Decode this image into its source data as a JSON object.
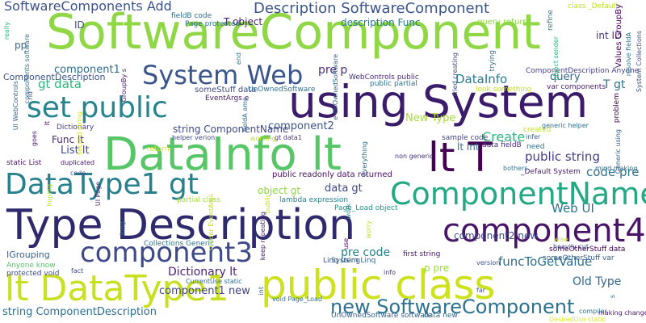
{
  "words": [
    {
      "text": "SoftwareComponent",
      "color": "#8fd744"
    },
    {
      "text": "using System",
      "color": "#3b1c6b"
    },
    {
      "text": "DataInfo lt",
      "color": "#56c667"
    },
    {
      "text": "Type Description",
      "color": "#2f2a6e"
    },
    {
      "text": "lt DataType1",
      "color": "#c8e020"
    },
    {
      "text": "public class",
      "color": "#cde11d"
    },
    {
      "text": "component4",
      "color": "#481467"
    },
    {
      "text": "ComponentName",
      "color": "#23a983"
    },
    {
      "text": "DataType1 gt",
      "color": "#27808e"
    },
    {
      "text": "set public",
      "color": "#25858e"
    },
    {
      "text": "lt T",
      "color": "#440154"
    },
    {
      "text": "component3",
      "color": "#3e4989"
    },
    {
      "text": "System Web",
      "color": "#39558c"
    },
    {
      "text": "new SoftwareComponent",
      "color": "#2c718e"
    },
    {
      "text": "SoftwareComponents Add",
      "color": "#3b528b"
    },
    {
      "text": "Description SoftwareComponent",
      "color": "#3a548c"
    },
    {
      "text": "funcToGetValue",
      "color": "#2d708e"
    },
    {
      "text": "Dictionary lt",
      "color": "#482173"
    },
    {
      "text": "component1 new",
      "color": "#404387"
    },
    {
      "text": "string ComponentDescription",
      "color": "#2e6f8e"
    },
    {
      "text": "pre code",
      "color": "#26818e"
    },
    {
      "text": "DataInfo",
      "color": "#2a788e"
    },
    {
      "text": "Web UI",
      "color": "#2c738e"
    },
    {
      "text": "Old Type",
      "color": "#30698e"
    },
    {
      "text": "public string",
      "color": "#433e85"
    },
    {
      "text": "code pre",
      "color": "#2d718e"
    },
    {
      "text": "Create",
      "color": "#2fb47c"
    },
    {
      "text": "component2 new",
      "color": "#3e4c8a"
    },
    {
      "text": "object gt",
      "color": "#90d743"
    },
    {
      "text": "data gt",
      "color": "#3f4788"
    },
    {
      "text": "gt data",
      "color": "#2fb47c"
    },
    {
      "text": "component1",
      "color": "#2e6e8e"
    },
    {
      "text": "List lt",
      "color": "#3f4889"
    },
    {
      "text": "Func lt",
      "color": "#482878"
    },
    {
      "text": "T gt",
      "color": "#2d708e"
    },
    {
      "text": "lt int",
      "color": "#2b748e"
    },
    {
      "text": "int ID",
      "color": "#46307e"
    },
    {
      "text": "query",
      "color": "#32658e"
    },
    {
      "text": "component2",
      "color": "#3a548c"
    },
    {
      "text": "string ComponentName",
      "color": "#3e4a89"
    },
    {
      "text": "pre p",
      "color": "#472d7b"
    },
    {
      "text": "p pre",
      "color": "#9bd93c"
    },
    {
      "text": "New Type",
      "color": "#a8db34"
    },
    {
      "text": "ComponentDescription",
      "color": "#3b528b"
    },
    {
      "text": "pp",
      "color": "#31678e"
    },
    {
      "text": "ID",
      "color": "#3b518b"
    },
    {
      "text": "public readonly data returned",
      "color": "#471164"
    },
    {
      "text": "T object",
      "color": "#482173"
    },
    {
      "text": "description Func",
      "color": "#2a788e"
    },
    {
      "text": "query returns",
      "color": "#8fd744"
    },
    {
      "text": "Page protected",
      "color": "#2c718e"
    },
    {
      "text": "fieldB code",
      "color": "#2e6e8e"
    },
    {
      "text": "class _Default",
      "color": "#bddf26"
    },
    {
      "text": "someStuff data",
      "color": "#3e4989"
    },
    {
      "text": "UnOwnedSoftware",
      "color": "#2c738e"
    },
    {
      "text": "WebControls public",
      "color": "#472c7a"
    },
    {
      "text": "public partial",
      "color": "#2c728e"
    },
    {
      "text": "look something",
      "color": "#c2df23"
    },
    {
      "text": "var components",
      "color": "#481f70"
    },
    {
      "text": "ComponentDescription Anyone",
      "color": "#433e85"
    },
    {
      "text": "EventArgs e",
      "color": "#481769"
    },
    {
      "text": "sample code",
      "color": "#424186"
    },
    {
      "text": "data fieldB",
      "color": "#472f7d"
    },
    {
      "text": "_Default System",
      "color": "#481769"
    },
    {
      "text": "someOtherStuff data",
      "color": "#440154"
    },
    {
      "text": "first string",
      "color": "#48186a"
    },
    {
      "text": "partial class",
      "color": "#a5db36"
    },
    {
      "text": "lambda expression",
      "color": "#27808e"
    },
    {
      "text": "Page_Load object",
      "color": "#1f958b"
    },
    {
      "text": "Collections Generic",
      "color": "#2a768e"
    },
    {
      "text": "Linq using",
      "color": "#3b528b"
    },
    {
      "text": "System Linq",
      "color": "#31688e"
    },
    {
      "text": "protected void",
      "color": "#3e4989"
    },
    {
      "text": "Anyone know",
      "color": "#56c667"
    },
    {
      "text": "IGrouping",
      "color": "#355f8d"
    },
    {
      "text": "static List",
      "color": "#481467"
    },
    {
      "text": "UnOwnedSoftware software",
      "color": "#34618d"
    },
    {
      "text": "data new",
      "color": "#2e6f8e"
    },
    {
      "text": "CurrentUse static",
      "color": "#306a8e"
    },
    {
      "text": "void Page_Load",
      "color": "#2c718e"
    },
    {
      "text": "return",
      "color": "#dde318"
    },
    {
      "text": "helper verion",
      "color": "#3f4889"
    },
    {
      "text": "working",
      "color": "#c2df23"
    },
    {
      "text": "gt data1",
      "color": "#46337f"
    },
    {
      "text": "Dictionary",
      "color": "#443a83"
    },
    {
      "text": "compiler",
      "color": "#2c738e"
    },
    {
      "text": "making changes",
      "color": "#481a6c"
    },
    {
      "text": "DesiredUse static",
      "color": "#ddeb1b"
    },
    {
      "text": "fact",
      "color": "#3e4989"
    },
    {
      "text": "version",
      "color": "#3b528b"
    },
    {
      "text": "info",
      "color": "#46307e"
    },
    {
      "text": "far",
      "color": "#3e4c8a"
    },
    {
      "text": "heavily cut",
      "color": "#3f4788"
    },
    {
      "text": "wise",
      "color": "#c8e020"
    },
    {
      "text": "someOtherStuff var",
      "color": "#365c8d"
    },
    {
      "text": "created",
      "color": "#c8e020"
    },
    {
      "text": "need",
      "color": "#2e6e8e"
    },
    {
      "text": "infer",
      "color": "#33638d"
    },
    {
      "text": "generic helper",
      "color": "#2c738e"
    },
    {
      "text": "non generic",
      "color": "#46327e"
    },
    {
      "text": "duplicated",
      "color": "#481467"
    },
    {
      "text": "code",
      "color": "#3b528b"
    },
    {
      "text": "bothers",
      "color": "#2a778e"
    },
    {
      "text": "mind making",
      "color": "#2e6f8e"
    },
    {
      "text": "Values GroupBy",
      "color": "#440154"
    },
    {
      "text": "resolve fieldA",
      "color": "#2d708e"
    },
    {
      "text": "refine",
      "color": "#2a788e"
    },
    {
      "text": "trying",
      "color": "#2d718e"
    },
    {
      "text": "tried creating",
      "color": "#3e4989"
    },
    {
      "text": "object sender",
      "color": "#2fb47c"
    },
    {
      "text": "e UnOwnedSoftware",
      "color": "#31678e"
    },
    {
      "text": "really",
      "color": "#2fb47c"
    },
    {
      "text": "components software",
      "color": "#2c728e"
    },
    {
      "text": "UI WebControls",
      "color": "#32648e"
    },
    {
      "text": "rid",
      "color": "#3a538b"
    },
    {
      "text": "goes",
      "color": "#481467"
    },
    {
      "text": "GroupBy s",
      "color": "#482173"
    },
    {
      "text": "second string",
      "color": "#d2e21b"
    },
    {
      "text": "fieldA amp",
      "color": "#2d718e"
    },
    {
      "text": "hoping",
      "color": "#b5de2b"
    },
    {
      "text": "UI Page",
      "color": "#482475"
    },
    {
      "text": "long",
      "color": "#2c738e"
    },
    {
      "text": "sender EventArgs",
      "color": "#c0df25"
    },
    {
      "text": "keep repeating",
      "color": "#482677"
    },
    {
      "text": "worry",
      "color": "#b5de2b"
    },
    {
      "text": "use",
      "color": "#440154"
    },
    {
      "text": "end",
      "color": "#2a768e"
    },
    {
      "text": "int",
      "color": "#3a548c"
    },
    {
      "text": "everything",
      "color": "#2e6f8e"
    },
    {
      "text": "problem",
      "color": "#440154"
    },
    {
      "text": "Generic using",
      "color": "#355f8d"
    },
    {
      "text": "System Collections",
      "color": "#3b528b"
    },
    {
      "text": "work",
      "color": "#25838e"
    },
    {
      "text": "public",
      "color": "#c8e020"
    },
    {
      "text": "s",
      "color": "#2e6f8e"
    },
    {
      "text": "lt",
      "color": "#440154"
    }
  ]
}
